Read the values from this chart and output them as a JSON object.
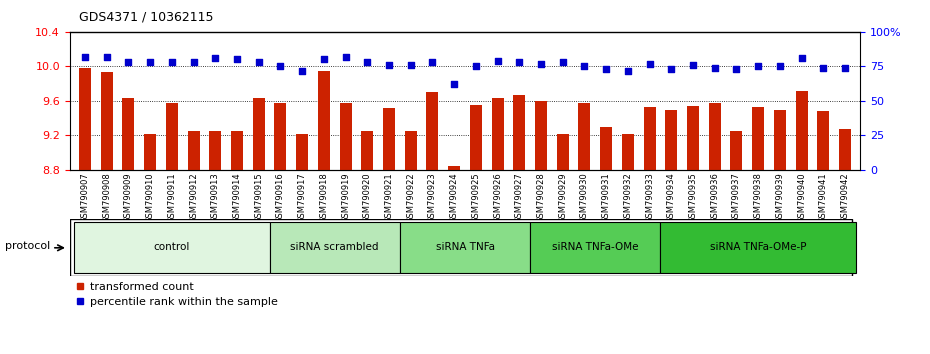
{
  "title": "GDS4371 / 10362115",
  "samples": [
    "GSM790907",
    "GSM790908",
    "GSM790909",
    "GSM790910",
    "GSM790911",
    "GSM790912",
    "GSM790913",
    "GSM790914",
    "GSM790915",
    "GSM790916",
    "GSM790917",
    "GSM790918",
    "GSM790919",
    "GSM790920",
    "GSM790921",
    "GSM790922",
    "GSM790923",
    "GSM790924",
    "GSM790925",
    "GSM790926",
    "GSM790927",
    "GSM790928",
    "GSM790929",
    "GSM790930",
    "GSM790931",
    "GSM790932",
    "GSM790933",
    "GSM790934",
    "GSM790935",
    "GSM790936",
    "GSM790937",
    "GSM790938",
    "GSM790939",
    "GSM790940",
    "GSM790941",
    "GSM790942"
  ],
  "bar_values": [
    9.98,
    9.94,
    9.63,
    9.22,
    9.57,
    9.25,
    9.25,
    9.25,
    9.63,
    9.57,
    9.22,
    9.95,
    9.58,
    9.25,
    9.52,
    9.25,
    9.7,
    8.85,
    9.55,
    9.63,
    9.67,
    9.6,
    9.22,
    9.58,
    9.3,
    9.22,
    9.53,
    9.5,
    9.54,
    9.58,
    9.25,
    9.53,
    9.5,
    9.72,
    9.48,
    9.27
  ],
  "percentile_values": [
    82,
    82,
    78,
    78,
    78,
    78,
    81,
    80,
    78,
    75,
    72,
    80,
    82,
    78,
    76,
    76,
    78,
    62,
    75,
    79,
    78,
    77,
    78,
    75,
    73,
    72,
    77,
    73,
    76,
    74,
    73,
    75,
    75,
    81,
    74,
    74
  ],
  "groups": [
    {
      "label": "control",
      "start": 0,
      "end": 9,
      "color": "#e0f5e0"
    },
    {
      "label": "siRNA scrambled",
      "start": 9,
      "end": 15,
      "color": "#b8e8b8"
    },
    {
      "label": "siRNA TNFa",
      "start": 15,
      "end": 21,
      "color": "#88dd88"
    },
    {
      "label": "siRNA TNFa-OMe",
      "start": 21,
      "end": 27,
      "color": "#55cc55"
    },
    {
      "label": "siRNA TNFa-OMe-P",
      "start": 27,
      "end": 36,
      "color": "#33bb33"
    }
  ],
  "ylim_left": [
    8.8,
    10.4
  ],
  "ylim_right": [
    0,
    100
  ],
  "yticks_left": [
    8.8,
    9.2,
    9.6,
    10.0,
    10.4
  ],
  "yticks_right": [
    0,
    25,
    50,
    75,
    100
  ],
  "bar_color": "#cc2200",
  "scatter_color": "#0000cc",
  "tick_bg_color": "#cccccc",
  "fig_bg": "#ffffff"
}
